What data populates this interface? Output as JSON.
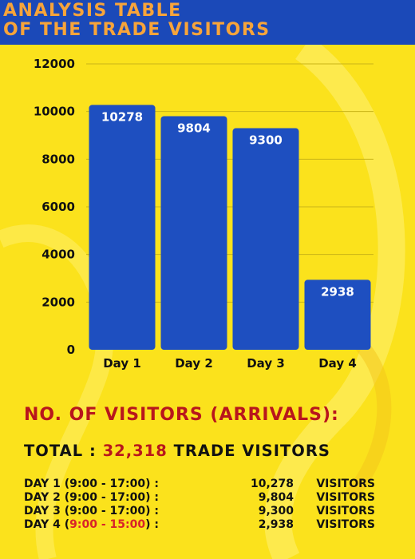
{
  "header": {
    "line1": "ANALYSIS TABLE",
    "line2": "OF THE TRADE VISITORS"
  },
  "colors": {
    "background": "#fbe21c",
    "header_bg": "#1b49b8",
    "header_text": "#f7a43a",
    "bar": "#1e4fc0",
    "accent_red": "#b8161c"
  },
  "chart_data": {
    "type": "bar",
    "categories": [
      "Day 1",
      "Day 2",
      "Day 3",
      "Day 4"
    ],
    "values": [
      10278,
      9804,
      9300,
      2938
    ],
    "data_labels": [
      "10278",
      "9804",
      "9300",
      "2938"
    ],
    "ylim": [
      0,
      12000
    ],
    "yticks": [
      "0",
      "2000",
      "4000",
      "6000",
      "8000",
      "10000",
      "12000"
    ],
    "grid": true,
    "legend": "none"
  },
  "stats": {
    "title": "NO. OF VISITORS (ARRIVALS):",
    "total_prefix": "TOTAL : ",
    "total_value": "32,318",
    "total_suffix": " TRADE VISITORS",
    "rows": [
      {
        "day": "DAY 1 (",
        "time": "9:00 - 17:00",
        "close": ") :",
        "value": "10,278",
        "unit": "VISITORS",
        "time_red": false
      },
      {
        "day": "DAY 2 (",
        "time": "9:00 - 17:00",
        "close": ") :",
        "value": "9,804",
        "unit": "VISITORS",
        "time_red": false
      },
      {
        "day": "DAY 3 (",
        "time": "9:00 - 17:00",
        "close": ") :",
        "value": "9,300",
        "unit": "VISITORS",
        "time_red": false
      },
      {
        "day": "DAY 4 (",
        "time": "9:00 - 15:00",
        "close": ") :",
        "value": "2,938",
        "unit": "VISITORS",
        "time_red": true
      }
    ]
  }
}
